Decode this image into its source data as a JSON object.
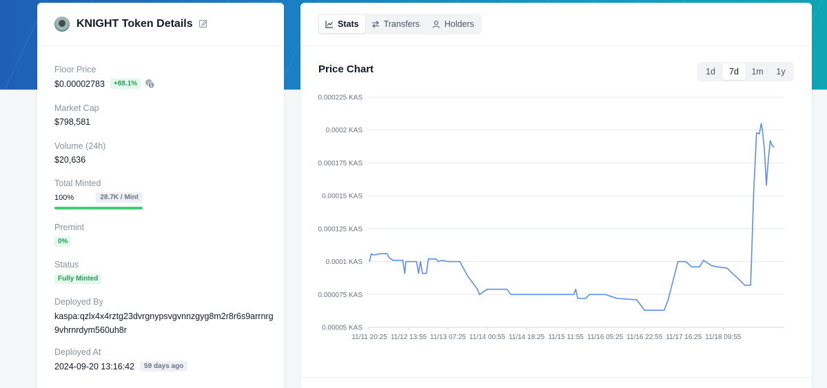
{
  "token": {
    "title": "KNIGHT Token Details",
    "floor_price_label": "Floor Price",
    "floor_price": "$0.00002783",
    "floor_change": "+88.1%",
    "market_cap_label": "Market Cap",
    "market_cap": "$798,581",
    "volume_label": "Volume (24h)",
    "volume": "$20,636",
    "total_minted_label": "Total Minted",
    "total_minted_pct": "100%",
    "minted_progress": 1.0,
    "mint_rate": "28.7K / Mint",
    "premint_label": "Premint",
    "premint": "0%",
    "status_label": "Status",
    "status": "Fully Minted",
    "deployed_by_label": "Deployed By",
    "deployed_by": "kaspa:qzlx4x4rztg23dvrgnypsvgvnnzgyg8m2r8r6s9arrnrg9vhrnrdym560uh8r",
    "deployed_at_label": "Deployed At",
    "deployed_at": "2024-09-20 13:16:42",
    "deployed_ago": "59 days ago",
    "colors": {
      "accent_green": "#3ecf72",
      "line_blue": "#5b8def"
    }
  },
  "tabs": [
    {
      "label": "Stats",
      "icon": "chart-icon",
      "active": true
    },
    {
      "label": "Transfers",
      "icon": "transfer-icon",
      "active": false
    },
    {
      "label": "Holders",
      "icon": "user-icon",
      "active": false
    }
  ],
  "chart_header": {
    "title": "Price Chart",
    "ranges": [
      "1d",
      "7d",
      "1m",
      "1y"
    ],
    "active_range": "7d"
  },
  "chart_data": {
    "type": "line",
    "title": "Price Chart",
    "xlabel": "",
    "ylabel": "",
    "unit": "KAS",
    "ylim": [
      5e-05,
      0.000225
    ],
    "yticks": [
      "0.00005 KAS",
      "0.000075 KAS",
      "0.0001 KAS",
      "0.000125 KAS",
      "0.00015 KAS",
      "0.000175 KAS",
      "0.0002 KAS",
      "0.000225 KAS"
    ],
    "ytick_values": [
      5e-05,
      7.5e-05,
      0.0001,
      0.000125,
      0.00015,
      0.000175,
      0.0002,
      0.000225
    ],
    "xticks": [
      "11/11 20:25",
      "11/12 13:55",
      "11/13 07:25",
      "11/14 00:55",
      "11/14 18:25",
      "11/15 11:55",
      "11/16 05:25",
      "11/16 22:55",
      "11/17 16:25",
      "11/18 09:55"
    ],
    "grid": true,
    "series": [
      {
        "color": "#5b8def",
        "points": [
          [
            0.0,
            0.0001
          ],
          [
            0.05,
            0.000106
          ],
          [
            0.1,
            0.000105
          ],
          [
            0.3,
            0.000106
          ],
          [
            0.45,
            0.000106
          ],
          [
            0.5,
            0.000103
          ],
          [
            0.6,
            0.000101
          ],
          [
            0.85,
            0.000101
          ],
          [
            0.9,
            9.1e-05
          ],
          [
            0.93,
            0.0001
          ],
          [
            1.0,
            0.0001
          ],
          [
            1.2,
            0.0001
          ],
          [
            1.25,
            9.1e-05
          ],
          [
            1.3,
            0.0001
          ],
          [
            1.35,
            9.1e-05
          ],
          [
            1.45,
            9.1e-05
          ],
          [
            1.5,
            0.000102
          ],
          [
            1.7,
            0.000102
          ],
          [
            1.75,
            0.0001
          ],
          [
            1.85,
            0.000101
          ],
          [
            2.0,
            0.0001
          ],
          [
            2.3,
            0.0001
          ],
          [
            2.5,
            8.9e-05
          ],
          [
            2.75,
            7.9e-05
          ],
          [
            2.8,
            7.5e-05
          ],
          [
            3.0,
            7.9e-05
          ],
          [
            3.5,
            7.9e-05
          ],
          [
            3.6,
            7.5e-05
          ],
          [
            4.5,
            7.5e-05
          ],
          [
            5.2,
            7.5e-05
          ],
          [
            5.25,
            7.9e-05
          ],
          [
            5.3,
            7.2e-05
          ],
          [
            5.5,
            7.2e-05
          ],
          [
            5.6,
            7.5e-05
          ],
          [
            6.0,
            7.5e-05
          ],
          [
            6.3,
            7.2e-05
          ],
          [
            6.8,
            7.1e-05
          ],
          [
            7.0,
            6.3e-05
          ],
          [
            7.5,
            6.3e-05
          ],
          [
            7.6,
            7.1e-05
          ],
          [
            7.85,
            0.0001
          ],
          [
            8.05,
            0.0001
          ],
          [
            8.2,
            9.6e-05
          ],
          [
            8.4,
            9.6e-05
          ],
          [
            8.5,
            0.000101
          ],
          [
            8.7,
            9.7e-05
          ],
          [
            8.85,
            9.6e-05
          ],
          [
            9.1,
            9.5e-05
          ],
          [
            9.2,
            9.2e-05
          ],
          [
            9.35,
            8.8e-05
          ],
          [
            9.55,
            8.2e-05
          ],
          [
            9.7,
            8.2e-05
          ],
          [
            9.78,
            0.000155
          ],
          [
            9.85,
            0.000198
          ],
          [
            9.92,
            0.000197
          ],
          [
            9.97,
            0.000205
          ],
          [
            10.0,
            0.0002
          ],
          [
            10.05,
            0.000185
          ],
          [
            10.1,
            0.000158
          ],
          [
            10.15,
            0.000178
          ],
          [
            10.2,
            0.000192
          ],
          [
            10.25,
            0.000188
          ],
          [
            10.3,
            0.000187
          ]
        ]
      }
    ]
  }
}
